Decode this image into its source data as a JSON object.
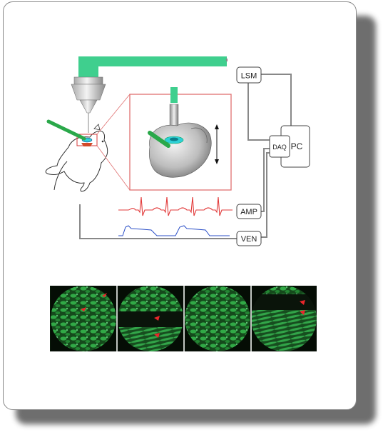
{
  "diagram": {
    "labels": {
      "lsm": "LSM",
      "pc": "PC",
      "daq": "DAQ",
      "amp": "AMP",
      "ven": "VEN"
    },
    "colors": {
      "green_beam": "#3fcf8e",
      "red_trace": "#e23a3a",
      "blue_trace": "#2b4fc7",
      "red_inset": "#e07070",
      "cyan_ring": "#2ed0d6",
      "micro_bg": "#0a1a0a",
      "micro_green": "#2fbf4a",
      "arrowhead": "#e8262b"
    },
    "icons": [
      "microscope-objective-icon",
      "mouse-icon",
      "heart-icon",
      "arrowhead-icon"
    ]
  }
}
